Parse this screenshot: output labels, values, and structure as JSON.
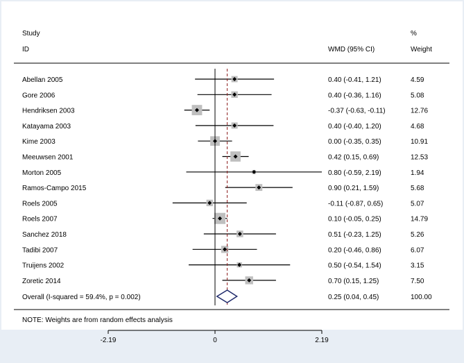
{
  "chart_data": {
    "type": "forest",
    "header": {
      "study_line1": "Study",
      "study_line2": "ID",
      "estimate_label": "WMD (95% CI)",
      "weight_line1": "%",
      "weight_line2": "Weight"
    },
    "studies": [
      {
        "name": "Abellan 2005",
        "est": 0.4,
        "lo": -0.41,
        "hi": 1.21,
        "ci_text": "0.40 (-0.41, 1.21)",
        "weight": 4.59,
        "weight_text": "4.59"
      },
      {
        "name": "Gore 2006",
        "est": 0.4,
        "lo": -0.36,
        "hi": 1.16,
        "ci_text": "0.40 (-0.36, 1.16)",
        "weight": 5.08,
        "weight_text": "5.08"
      },
      {
        "name": "Hendriksen 2003",
        "est": -0.37,
        "lo": -0.63,
        "hi": -0.11,
        "ci_text": "-0.37 (-0.63, -0.11)",
        "weight": 12.76,
        "weight_text": "12.76"
      },
      {
        "name": "Katayama 2003",
        "est": 0.4,
        "lo": -0.4,
        "hi": 1.2,
        "ci_text": "0.40 (-0.40, 1.20)",
        "weight": 4.68,
        "weight_text": "4.68"
      },
      {
        "name": "Kime 2003",
        "est": 0.0,
        "lo": -0.35,
        "hi": 0.35,
        "ci_text": "0.00 (-0.35, 0.35)",
        "weight": 10.91,
        "weight_text": "10.91"
      },
      {
        "name": "Meeuwsen 2001",
        "est": 0.42,
        "lo": 0.15,
        "hi": 0.69,
        "ci_text": "0.42 (0.15, 0.69)",
        "weight": 12.53,
        "weight_text": "12.53"
      },
      {
        "name": "Morton 2005",
        "est": 0.8,
        "lo": -0.59,
        "hi": 2.19,
        "ci_text": "0.80 (-0.59, 2.19)",
        "weight": 1.94,
        "weight_text": "1.94"
      },
      {
        "name": "Ramos-Campo 2015",
        "est": 0.9,
        "lo": 0.21,
        "hi": 1.59,
        "ci_text": "0.90 (0.21, 1.59)",
        "weight": 5.68,
        "weight_text": "5.68"
      },
      {
        "name": "Roels 2005",
        "est": -0.11,
        "lo": -0.87,
        "hi": 0.65,
        "ci_text": "-0.11 (-0.87, 0.65)",
        "weight": 5.07,
        "weight_text": "5.07"
      },
      {
        "name": "Roels 2007",
        "est": 0.1,
        "lo": -0.05,
        "hi": 0.25,
        "ci_text": "0.10 (-0.05, 0.25)",
        "weight": 14.79,
        "weight_text": "14.79"
      },
      {
        "name": "Sanchez 2018",
        "est": 0.51,
        "lo": -0.23,
        "hi": 1.25,
        "ci_text": "0.51 (-0.23, 1.25)",
        "weight": 5.26,
        "weight_text": "5.26"
      },
      {
        "name": "Tadibi 2007",
        "est": 0.2,
        "lo": -0.46,
        "hi": 0.86,
        "ci_text": "0.20 (-0.46, 0.86)",
        "weight": 6.07,
        "weight_text": "6.07"
      },
      {
        "name": "Truijens 2002",
        "est": 0.5,
        "lo": -0.54,
        "hi": 1.54,
        "ci_text": "0.50 (-0.54, 1.54)",
        "weight": 3.15,
        "weight_text": "3.15"
      },
      {
        "name": "Zoretic 2014",
        "est": 0.7,
        "lo": 0.15,
        "hi": 1.25,
        "ci_text": "0.70 (0.15, 1.25)",
        "weight": 7.5,
        "weight_text": "7.50"
      }
    ],
    "overall": {
      "label": "Overall  (I-squared = 59.4%, p = 0.002)",
      "est": 0.25,
      "lo": 0.04,
      "hi": 0.45,
      "ci_text": "0.25 (0.04, 0.45)",
      "weight_text": "100.00"
    },
    "note": "NOTE: Weights are from random effects analysis",
    "x_axis": {
      "ticks": [
        -2.19,
        0,
        2.19
      ],
      "tick_labels": [
        "-2.19",
        "0",
        "2.19"
      ],
      "range": [
        -2.19,
        2.19
      ]
    },
    "null_line_value": 0,
    "colors": {
      "background": "#e8eef5",
      "panel": "#ffffff",
      "box": "#bfbfbf",
      "overall_diamond": "#1f2a6b",
      "reference_line": "#8b1a1a"
    }
  }
}
